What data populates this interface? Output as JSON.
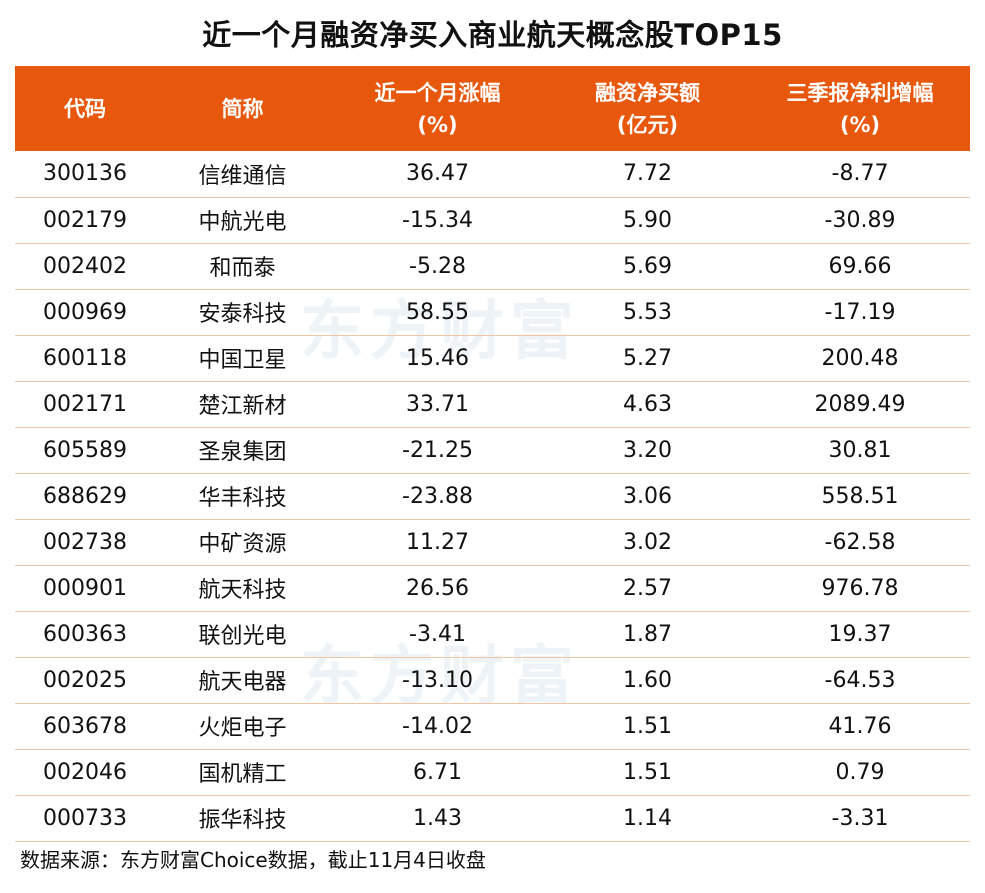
{
  "title": "近一个月融资净买入商业航天概念股TOP15",
  "watermark": "东方财富",
  "colors": {
    "header_bg": "#E8580C",
    "header_text": "#FFFFFF",
    "row_divider": "#F0C7A6"
  },
  "table": {
    "headers": [
      {
        "line1": "代码",
        "line2": ""
      },
      {
        "line1": "简称",
        "line2": ""
      },
      {
        "line1": "近一个月涨幅",
        "line2": "(%)"
      },
      {
        "line1": "融资净买额",
        "line2": "(亿元)"
      },
      {
        "line1": "三季报净利增幅",
        "line2": "(%)"
      }
    ],
    "rows": [
      {
        "code": "300136",
        "name": "信维通信",
        "month_change": "36.47",
        "net_buy": "7.72",
        "q3_profit_growth": "-8.77"
      },
      {
        "code": "002179",
        "name": "中航光电",
        "month_change": "-15.34",
        "net_buy": "5.90",
        "q3_profit_growth": "-30.89"
      },
      {
        "code": "002402",
        "name": "和而泰",
        "month_change": "-5.28",
        "net_buy": "5.69",
        "q3_profit_growth": "69.66"
      },
      {
        "code": "000969",
        "name": "安泰科技",
        "month_change": "58.55",
        "net_buy": "5.53",
        "q3_profit_growth": "-17.19"
      },
      {
        "code": "600118",
        "name": "中国卫星",
        "month_change": "15.46",
        "net_buy": "5.27",
        "q3_profit_growth": "200.48"
      },
      {
        "code": "002171",
        "name": "楚江新材",
        "month_change": "33.71",
        "net_buy": "4.63",
        "q3_profit_growth": "2089.49"
      },
      {
        "code": "605589",
        "name": "圣泉集团",
        "month_change": "-21.25",
        "net_buy": "3.20",
        "q3_profit_growth": "30.81"
      },
      {
        "code": "688629",
        "name": "华丰科技",
        "month_change": "-23.88",
        "net_buy": "3.06",
        "q3_profit_growth": "558.51"
      },
      {
        "code": "002738",
        "name": "中矿资源",
        "month_change": "11.27",
        "net_buy": "3.02",
        "q3_profit_growth": "-62.58"
      },
      {
        "code": "000901",
        "name": "航天科技",
        "month_change": "26.56",
        "net_buy": "2.57",
        "q3_profit_growth": "976.78"
      },
      {
        "code": "600363",
        "name": "联创光电",
        "month_change": "-3.41",
        "net_buy": "1.87",
        "q3_profit_growth": "19.37"
      },
      {
        "code": "002025",
        "name": "航天电器",
        "month_change": "-13.10",
        "net_buy": "1.60",
        "q3_profit_growth": "-64.53"
      },
      {
        "code": "603678",
        "name": "火炬电子",
        "month_change": "-14.02",
        "net_buy": "1.51",
        "q3_profit_growth": "41.76"
      },
      {
        "code": "002046",
        "name": "国机精工",
        "month_change": "6.71",
        "net_buy": "1.51",
        "q3_profit_growth": "0.79"
      },
      {
        "code": "000733",
        "name": "振华科技",
        "month_change": "1.43",
        "net_buy": "1.14",
        "q3_profit_growth": "-3.31"
      }
    ]
  },
  "footer": "数据来源：东方财富Choice数据，截止11月4日收盘"
}
